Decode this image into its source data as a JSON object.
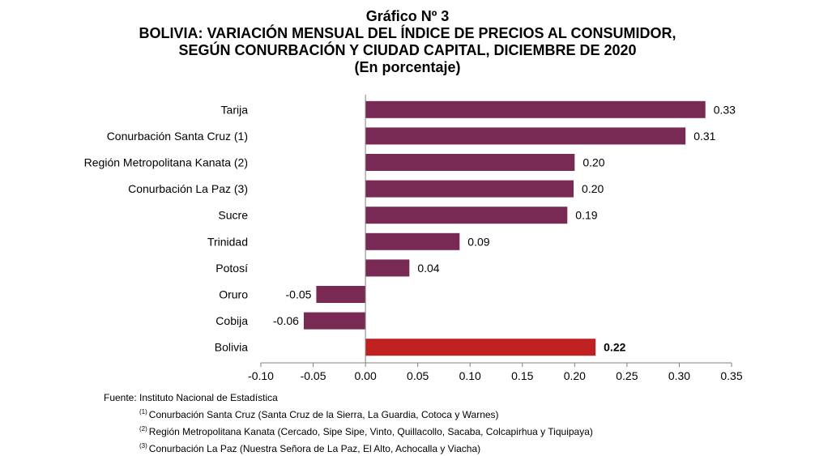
{
  "header": {
    "title": "Gráfico Nº 3",
    "subtitle_line1": "BOLIVIA: VARIACIÓN MENSUAL DEL ÍNDICE DE PRECIOS AL CONSUMIDOR,",
    "subtitle_line2": "SEGÚN CONURBACIÓN Y CIUDAD CAPITAL, DICIEMBRE DE 2020",
    "unit": "(En porcentaje)"
  },
  "chart_data": {
    "type": "bar",
    "orientation": "horizontal",
    "categories": [
      "Tarija",
      "Conurbación Santa Cruz (1)",
      "Región Metropolitana Kanata (2)",
      "Conurbación La Paz (3)",
      "Sucre",
      "Trinidad",
      "Potosí",
      "Oruro",
      "Cobija",
      "Bolivia"
    ],
    "values": [
      0.325,
      0.306,
      0.2,
      0.199,
      0.193,
      0.09,
      0.042,
      -0.047,
      -0.059,
      0.22
    ],
    "value_labels": [
      "0.33",
      "0.31",
      "0.20",
      "0.20",
      "0.19",
      "0.09",
      "0.04",
      "-0.05",
      "-0.06",
      "0.22"
    ],
    "highlight": [
      "Bolivia"
    ],
    "xlim": [
      -0.1,
      0.35
    ],
    "xticks": [
      "-0.10",
      "-0.05",
      "0.00",
      "0.05",
      "0.10",
      "0.15",
      "0.20",
      "0.25",
      "0.30",
      "0.35"
    ],
    "xtick_values": [
      -0.1,
      -0.05,
      0,
      0.05,
      0.1,
      0.15,
      0.2,
      0.25,
      0.3,
      0.35
    ],
    "grid": false,
    "colors": {
      "bar": "#782a55",
      "highlight": "#c0201f",
      "axis": "#7f7f7f"
    }
  },
  "footer": {
    "source": "Fuente: Instituto Nacional de Estadística",
    "notes": [
      {
        "mark": "(1)",
        "text": "Conurbación Santa Cruz (Santa Cruz de la Sierra, La Guardia, Cotoca y Warnes)"
      },
      {
        "mark": "(2)",
        "text": "Región Metropolitana Kanata (Cercado, Sipe Sipe, Vinto, Quillacollo, Sacaba, Colcapirhua y Tiquipaya)"
      },
      {
        "mark": "(3)",
        "text": "Conurbación La Paz (Nuestra Señora de La Paz, El Alto, Achocalla y Viacha)"
      }
    ]
  }
}
